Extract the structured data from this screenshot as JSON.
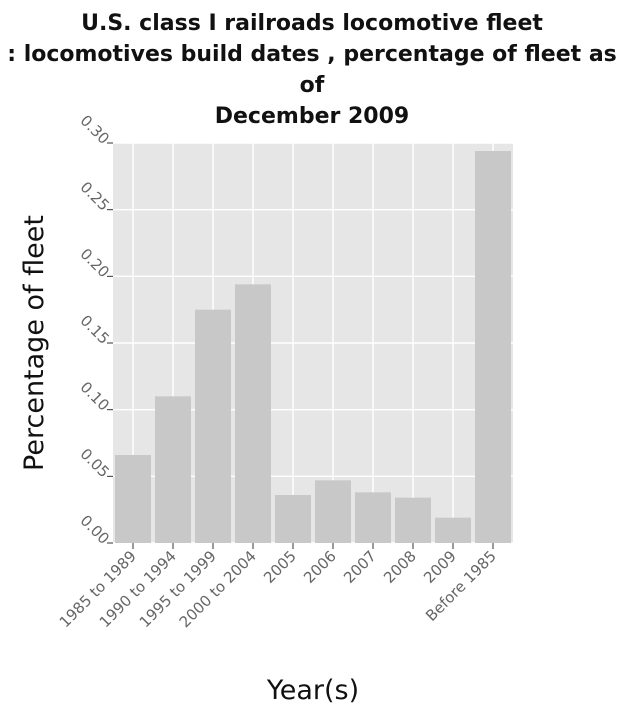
{
  "chart_data": {
    "type": "bar",
    "title": "U.S. class I railroads locomotive fleet : locomotives build dates , percentage of fleet as of December 2009",
    "xlabel": "Year(s)",
    "ylabel": "Percentage of fleet",
    "categories": [
      "1985 to 1989",
      "1990 to 1994",
      "1995 to 1999",
      "2000 to 2004",
      "2005",
      "2006",
      "2007",
      "2008",
      "2009",
      "Before 1985"
    ],
    "values": [
      0.066,
      0.11,
      0.175,
      0.194,
      0.036,
      0.047,
      0.038,
      0.034,
      0.019,
      0.294
    ],
    "ylim": [
      0,
      0.3
    ],
    "yticks": [
      "0.00",
      "0.05",
      "0.10",
      "0.15",
      "0.20",
      "0.25",
      "0.30"
    ],
    "grid": true,
    "colors": {
      "bar": "#c8c8c8",
      "panel": "#e6e6e6",
      "grid": "#ffffff"
    }
  }
}
